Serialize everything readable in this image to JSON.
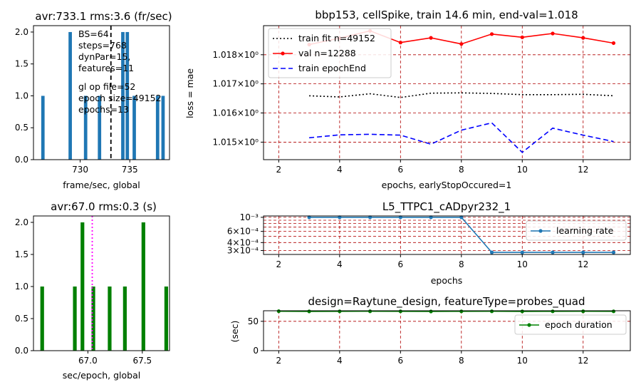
{
  "chart_data": [
    {
      "id": "fps",
      "type": "bar",
      "title": "avr:733.1 rms:3.6 (fr/sec)",
      "xlabel": "frame/sec,  global",
      "ylabel": "",
      "xlim": [
        725.3,
        739.0
      ],
      "ylim": [
        0,
        2.1
      ],
      "xticks": [
        730,
        735
      ],
      "yticks": [
        0.0,
        0.5,
        1.0,
        1.5,
        2.0
      ],
      "bin_width": 0.34,
      "bars": [
        {
          "x": 726.25,
          "value": 1
        },
        {
          "x": 729.0,
          "value": 2
        },
        {
          "x": 730.55,
          "value": 1
        },
        {
          "x": 731.95,
          "value": 1
        },
        {
          "x": 734.3,
          "value": 2
        },
        {
          "x": 734.75,
          "value": 2
        },
        {
          "x": 735.45,
          "value": 1
        },
        {
          "x": 737.8,
          "value": 1
        },
        {
          "x": 738.35,
          "value": 1
        }
      ],
      "mean_line": 733.1,
      "mean_line_color": "#000000",
      "bar_color": "#1f77b4",
      "notes": [
        "BS=64",
        "steps=768",
        "dynPar=15,",
        "features=11",
        "gl op file=52",
        "epoch size=49152",
        "epochs=13"
      ]
    },
    {
      "id": "loss",
      "type": "line",
      "title": "bbp153, cellSpike, train 14.6 min, end-val=1.018",
      "xlabel": "epochs, earlyStopOccured=1",
      "ylabel": "loss = mae",
      "log_y": true,
      "xlim": [
        1.5,
        13.55
      ],
      "ylim": [
        1.0144,
        1.019
      ],
      "xticks": [
        2,
        4,
        6,
        8,
        10,
        12
      ],
      "yticks": [
        1.015,
        1.016,
        1.017,
        1.018
      ],
      "ytick_labels": [
        "1.015",
        "1.016",
        "1.017",
        "1.018"
      ],
      "ytick_suffix": "×10⁰",
      "legend_position": "upper-left",
      "x": [
        3,
        4,
        5,
        6,
        7,
        8,
        9,
        10,
        11,
        12,
        13
      ],
      "series": [
        {
          "name": "train fit n=49152",
          "color": "#000000",
          "style": "dotted",
          "values": [
            1.01659,
            1.01655,
            1.01666,
            1.01653,
            1.01668,
            1.01669,
            1.01667,
            1.01663,
            1.01663,
            1.01664,
            1.01659
          ]
        },
        {
          "name": "val n=12288",
          "color": "#ff0000",
          "style": "solid-marker",
          "values": [
            1.01835,
            1.01857,
            1.01882,
            1.01842,
            1.01858,
            1.01837,
            1.01871,
            1.0186,
            1.01873,
            1.01858,
            1.0184
          ]
        },
        {
          "name": "train epochEnd",
          "color": "#0000ff",
          "style": "dashed",
          "values": [
            1.01515,
            1.01525,
            1.01527,
            1.01524,
            1.01493,
            1.01541,
            1.01566,
            1.01465,
            1.01548,
            1.01524,
            1.01502
          ]
        }
      ]
    },
    {
      "id": "duration_hist",
      "type": "bar",
      "title": "avr:67.0 rms:0.3 (s)",
      "xlabel": "sec/epoch,  global",
      "ylabel": "",
      "xlim": [
        66.5,
        67.75
      ],
      "ylim": [
        0,
        2.1
      ],
      "xticks": [
        67.0,
        67.5
      ],
      "yticks": [
        0.0,
        0.5,
        1.0,
        1.5,
        2.0
      ],
      "bin_width": 0.034,
      "bars": [
        {
          "x": 66.58,
          "value": 1
        },
        {
          "x": 66.88,
          "value": 1
        },
        {
          "x": 66.95,
          "value": 2
        },
        {
          "x": 67.05,
          "value": 1
        },
        {
          "x": 67.2,
          "value": 1
        },
        {
          "x": 67.34,
          "value": 1
        },
        {
          "x": 67.51,
          "value": 2
        },
        {
          "x": 67.72,
          "value": 1
        }
      ],
      "mean_line": 67.04,
      "mean_line_color": "#ff00ff",
      "bar_color": "#008000"
    },
    {
      "id": "lr",
      "type": "line",
      "title": "L5_TTPC1_cADpyr232_1",
      "xlabel": "epochs",
      "ylabel": "",
      "log_y": true,
      "xlim": [
        1.5,
        13.55
      ],
      "ylim": [
        0.00026,
        0.00105
      ],
      "xticks": [
        2,
        4,
        6,
        8,
        10,
        12
      ],
      "yticks": [
        0.001,
        0.0006,
        0.0004,
        0.0003
      ],
      "ytick_labels": [
        "10⁻³",
        "6×10⁻⁴",
        "4×10⁻⁴",
        "3×10⁻⁴"
      ],
      "legend_position": "right",
      "x": [
        3,
        4,
        5,
        6,
        7,
        8,
        9,
        10,
        11,
        12,
        13
      ],
      "series": [
        {
          "name": "learning rate",
          "color": "#1f77b4",
          "style": "solid-marker",
          "values": [
            0.001,
            0.001,
            0.001,
            0.001,
            0.001,
            0.001,
            0.00028,
            0.00028,
            0.00028,
            0.00028,
            0.00028
          ]
        }
      ]
    },
    {
      "id": "epoch_duration",
      "type": "line",
      "title": "design=Raytune_design, featureType=probes_quad",
      "xlabel": "",
      "ylabel": "(sec)",
      "log_y": false,
      "xlim": [
        1.5,
        13.55
      ],
      "ylim": [
        0,
        68
      ],
      "xticks": [
        2,
        4,
        6,
        8,
        10,
        12
      ],
      "yticks": [
        0,
        50
      ],
      "legend_position": "right",
      "x": [
        2,
        3,
        4,
        5,
        6,
        7,
        8,
        9,
        10,
        11,
        12,
        13
      ],
      "series": [
        {
          "name": "epoch duration",
          "color": "#008000",
          "style": "solid-marker",
          "values": [
            67.2,
            66.9,
            67.0,
            67.1,
            67.0,
            66.8,
            67.0,
            67.1,
            66.9,
            67.0,
            67.1,
            67.0
          ]
        }
      ]
    }
  ]
}
